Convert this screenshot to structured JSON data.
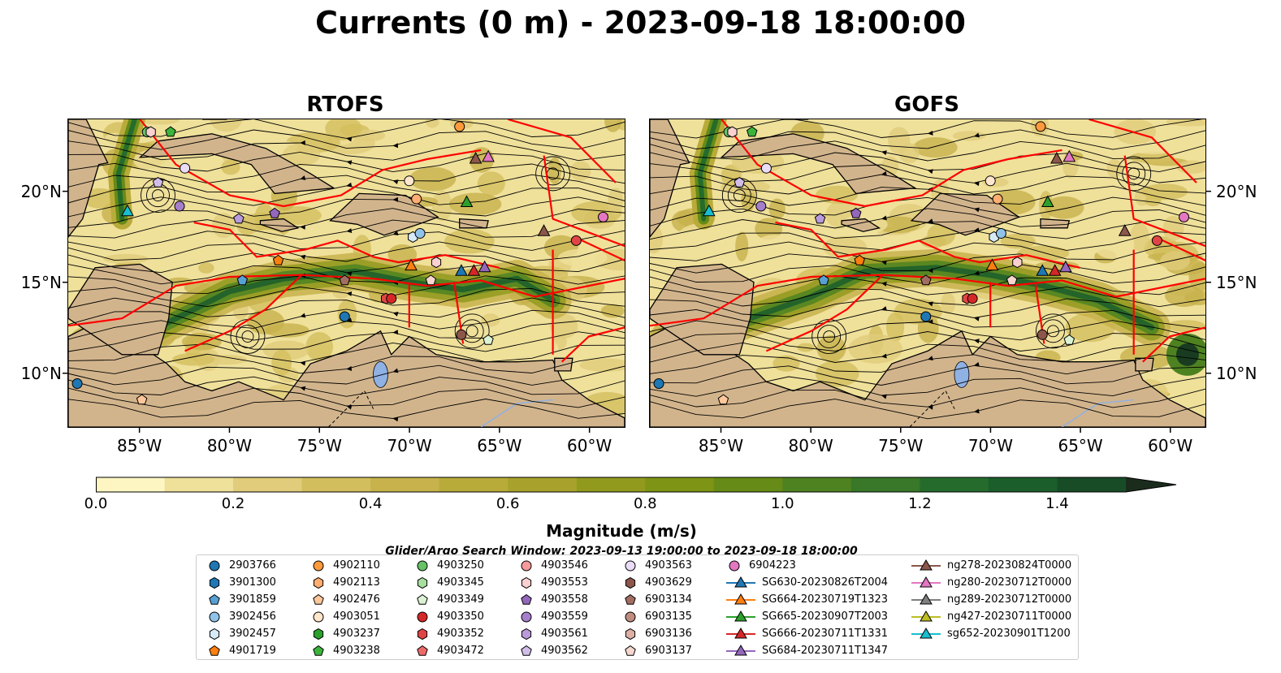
{
  "title": "Currents (0 m) - 2023-09-18 18:00:00",
  "panels": [
    {
      "title": "RTOFS"
    },
    {
      "title": "GOFS"
    }
  ],
  "map_extent": {
    "lon": [
      -89,
      -58
    ],
    "lat": [
      7,
      24
    ]
  },
  "x_ticks": [
    "85°W",
    "80°W",
    "75°W",
    "70°W",
    "65°W",
    "60°W"
  ],
  "x_tick_values": [
    -85,
    -80,
    -75,
    -70,
    -65,
    -60
  ],
  "y_ticks": [
    "20°N",
    "15°N",
    "10°N"
  ],
  "y_tick_values": [
    20,
    15,
    10
  ],
  "colors": {
    "land": "#d2b48c",
    "lake": "#8fb1e3",
    "coastline": "#000000",
    "eez_boundary": "#ff0000",
    "streamline": "#000000"
  },
  "colorbar": {
    "label": "Magnitude (m/s)",
    "ticks": [
      "0.0",
      "0.2",
      "0.4",
      "0.6",
      "0.8",
      "1.0",
      "1.2",
      "1.4"
    ],
    "range": [
      0,
      1.5
    ],
    "extend": "max",
    "colors": [
      "#fdf6c3",
      "#efe09a",
      "#e0cc7a",
      "#d3be5e",
      "#c7b24c",
      "#b8ab3a",
      "#a8a22c",
      "#929a1e",
      "#7d9414",
      "#668b16",
      "#4e8221",
      "#387828",
      "#256c2c",
      "#1b5e2b",
      "#184c27",
      "#193c21",
      "#1b2c1c"
    ]
  },
  "search_window": "Glider/Argo Search Window: 2023-09-13 19:00:00 to 2023-09-18 18:00:00",
  "legend": [
    {
      "label": "2903766",
      "marker": "circle",
      "color": "#1f77b4"
    },
    {
      "label": "3901300",
      "marker": "hexagon",
      "color": "#1f77b4"
    },
    {
      "label": "3901859",
      "marker": "pentagon",
      "color": "#57a0d3"
    },
    {
      "label": "3902456",
      "marker": "circle",
      "color": "#8fc3ea"
    },
    {
      "label": "3902457",
      "marker": "hexagon",
      "color": "#d6ebf7"
    },
    {
      "label": "4901719",
      "marker": "pentagon",
      "color": "#ff7f0e"
    },
    {
      "label": "4902110",
      "marker": "circle",
      "color": "#ff9a3c"
    },
    {
      "label": "4902113",
      "marker": "hexagon",
      "color": "#ffad70"
    },
    {
      "label": "4902476",
      "marker": "pentagon",
      "color": "#ffc79a"
    },
    {
      "label": "4903051",
      "marker": "circle",
      "color": "#ffe6cc"
    },
    {
      "label": "4903237",
      "marker": "hexagon",
      "color": "#2ca02c"
    },
    {
      "label": "4903238",
      "marker": "pentagon",
      "color": "#3cb43c"
    },
    {
      "label": "4903250",
      "marker": "circle",
      "color": "#66c266"
    },
    {
      "label": "4903345",
      "marker": "hexagon",
      "color": "#a8dea0"
    },
    {
      "label": "4903349",
      "marker": "pentagon",
      "color": "#dbf3d4"
    },
    {
      "label": "4903350",
      "marker": "circle",
      "color": "#d62728"
    },
    {
      "label": "4903352",
      "marker": "hexagon",
      "color": "#e04545"
    },
    {
      "label": "4903472",
      "marker": "pentagon",
      "color": "#ee6a6a"
    },
    {
      "label": "4903546",
      "marker": "circle",
      "color": "#f59a9a"
    },
    {
      "label": "4903553",
      "marker": "hexagon",
      "color": "#fbd0d0"
    },
    {
      "label": "4903558",
      "marker": "pentagon",
      "color": "#9467bd"
    },
    {
      "label": "4903559",
      "marker": "circle",
      "color": "#a57fcb"
    },
    {
      "label": "4903561",
      "marker": "hexagon",
      "color": "#b99adb"
    },
    {
      "label": "4903562",
      "marker": "pentagon",
      "color": "#d2bdea"
    },
    {
      "label": "4903563",
      "marker": "circle",
      "color": "#eadcf6"
    },
    {
      "label": "4903629",
      "marker": "hexagon",
      "color": "#8c564b"
    },
    {
      "label": "6903134",
      "marker": "pentagon",
      "color": "#a36e62"
    },
    {
      "label": "6903135",
      "marker": "circle",
      "color": "#c08d80"
    },
    {
      "label": "6903136",
      "marker": "hexagon",
      "color": "#dcb0a4"
    },
    {
      "label": "6903137",
      "marker": "pentagon",
      "color": "#f6d6cf"
    },
    {
      "label": "6904223",
      "marker": "circle",
      "color": "#e377c2"
    },
    {
      "label": "SG630-20230826T2004",
      "marker": "triangle-line",
      "color": "#1f77b4"
    },
    {
      "label": "SG664-20230719T1323",
      "marker": "triangle-line",
      "color": "#ff7f0e"
    },
    {
      "label": "SG665-20230907T2003",
      "marker": "triangle-line",
      "color": "#2ca02c"
    },
    {
      "label": "SG666-20230711T1331",
      "marker": "triangle-line",
      "color": "#d62728"
    },
    {
      "label": "SG684-20230711T1347",
      "marker": "triangle-line",
      "color": "#9467bd"
    },
    {
      "label": "ng278-20230824T0000",
      "marker": "triangle-line",
      "color": "#8c564b"
    },
    {
      "label": "ng280-20230712T0000",
      "marker": "triangle-line",
      "color": "#e377c2"
    },
    {
      "label": "ng289-20230712T0000",
      "marker": "triangle-line",
      "color": "#7f7f7f"
    },
    {
      "label": "ng427-20230711T0000",
      "marker": "triangle-line",
      "color": "#bcbd22"
    },
    {
      "label": "sg652-20230901T1200",
      "marker": "triangle-line",
      "color": "#17becf"
    }
  ]
}
